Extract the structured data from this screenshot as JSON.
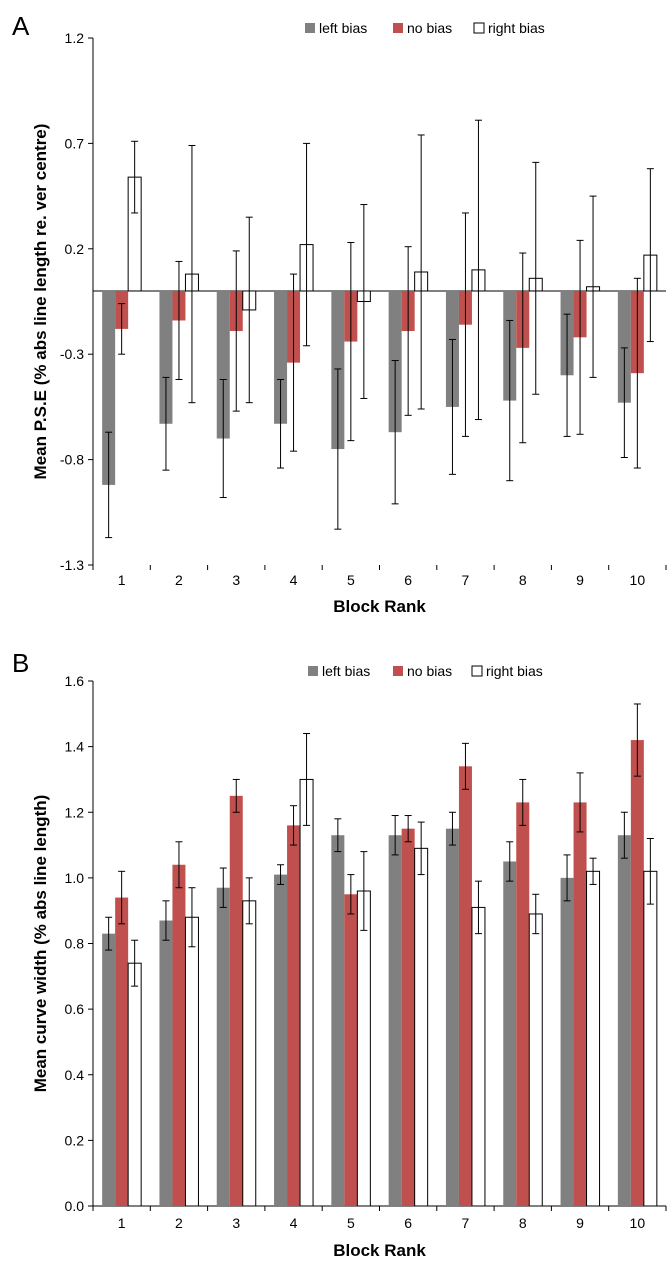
{
  "chart_data": [
    {
      "type": "bar",
      "panel_label": "A",
      "categories": [
        "1",
        "2",
        "3",
        "4",
        "5",
        "6",
        "7",
        "8",
        "9",
        "10"
      ],
      "xlabel": "Block Rank",
      "ylabel": "Mean P.S.E (% abs line length re. ver centre)",
      "ylim": [
        -1.3,
        1.2
      ],
      "yticks": [
        "-1.3",
        "-0.8",
        "-0.3",
        "0.2",
        "0.7",
        "1.2"
      ],
      "ytick_values": [
        -1.3,
        -0.8,
        -0.3,
        0.2,
        0.7,
        1.2
      ],
      "baseline": 0,
      "grid": false,
      "legend_position": "top-right",
      "series": [
        {
          "name": "left bias",
          "color": "#808080",
          "values": [
            -0.92,
            -0.63,
            -0.7,
            -0.63,
            -0.75,
            -0.67,
            -0.55,
            -0.52,
            -0.4,
            -0.53
          ],
          "errors": [
            0.25,
            0.22,
            0.28,
            0.21,
            0.38,
            0.34,
            0.32,
            0.38,
            0.29,
            0.26
          ]
        },
        {
          "name": "no bias",
          "color": "#c0504d",
          "values": [
            -0.18,
            -0.14,
            -0.19,
            -0.34,
            -0.24,
            -0.19,
            -0.16,
            -0.27,
            -0.22,
            -0.39
          ],
          "errors": [
            0.12,
            0.28,
            0.38,
            0.42,
            0.47,
            0.4,
            0.53,
            0.45,
            0.46,
            0.45
          ]
        },
        {
          "name": "right bias",
          "color": "#ffffff",
          "values": [
            0.54,
            0.08,
            -0.09,
            0.22,
            -0.05,
            0.09,
            0.1,
            0.06,
            0.02,
            0.17
          ],
          "errors": [
            0.17,
            0.61,
            0.44,
            0.48,
            0.46,
            0.65,
            0.71,
            0.55,
            0.43,
            0.41
          ]
        }
      ]
    },
    {
      "type": "bar",
      "panel_label": "B",
      "categories": [
        "1",
        "2",
        "3",
        "4",
        "5",
        "6",
        "7",
        "8",
        "9",
        "10"
      ],
      "xlabel": "Block Rank",
      "ylabel": "Mean curve width (% abs line length)",
      "ylim": [
        0.0,
        1.6
      ],
      "yticks": [
        "0.0",
        "0.2",
        "0.4",
        "0.6",
        "0.8",
        "1.0",
        "1.2",
        "1.4",
        "1.6"
      ],
      "ytick_values": [
        0,
        0.2,
        0.4,
        0.6,
        0.8,
        1.0,
        1.2,
        1.4,
        1.6
      ],
      "baseline": 0,
      "grid": false,
      "legend_position": "top-right",
      "series": [
        {
          "name": "left bias",
          "color": "#808080",
          "values": [
            0.83,
            0.87,
            0.97,
            1.01,
            1.13,
            1.13,
            1.15,
            1.05,
            1.0,
            1.13
          ],
          "errors": [
            0.05,
            0.06,
            0.06,
            0.03,
            0.05,
            0.06,
            0.05,
            0.06,
            0.07,
            0.07
          ]
        },
        {
          "name": "no bias",
          "color": "#c0504d",
          "values": [
            0.94,
            1.04,
            1.25,
            1.16,
            0.95,
            1.15,
            1.34,
            1.23,
            1.23,
            1.42
          ],
          "errors": [
            0.08,
            0.07,
            0.05,
            0.06,
            0.06,
            0.04,
            0.07,
            0.07,
            0.09,
            0.11
          ]
        },
        {
          "name": "right bias",
          "color": "#ffffff",
          "values": [
            0.74,
            0.88,
            0.93,
            1.3,
            0.96,
            1.09,
            0.91,
            0.89,
            1.02,
            1.02
          ],
          "errors": [
            0.07,
            0.09,
            0.07,
            0.14,
            0.12,
            0.08,
            0.08,
            0.06,
            0.04,
            0.1
          ]
        }
      ]
    }
  ]
}
